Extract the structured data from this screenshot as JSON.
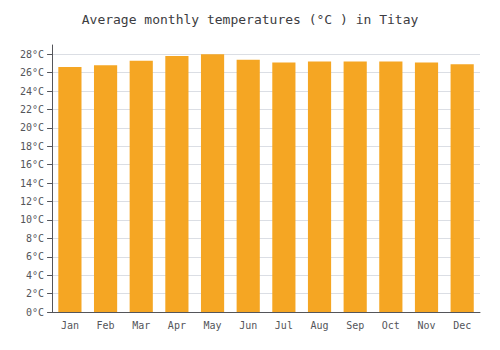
{
  "chart_data": {
    "type": "bar",
    "title": "Average monthly temperatures (°C ) in Titay",
    "categories": [
      "Jan",
      "Feb",
      "Mar",
      "Apr",
      "May",
      "Jun",
      "Jul",
      "Aug",
      "Sep",
      "Oct",
      "Nov",
      "Dec"
    ],
    "values": [
      26.6,
      26.8,
      27.3,
      27.8,
      28.0,
      27.4,
      27.1,
      27.2,
      27.2,
      27.2,
      27.1,
      26.9
    ],
    "color": "#F5A623",
    "ylim": [
      0,
      29
    ],
    "yticks": [
      {
        "value": 0,
        "label": "0°C"
      },
      {
        "value": 2,
        "label": "2°C"
      },
      {
        "value": 4,
        "label": "4°C"
      },
      {
        "value": 6,
        "label": "6°C"
      },
      {
        "value": 8,
        "label": "8°C"
      },
      {
        "value": 10,
        "label": "10°C"
      },
      {
        "value": 12,
        "label": "12°C"
      },
      {
        "value": 14,
        "label": "14°C"
      },
      {
        "value": 16,
        "label": "16°C"
      },
      {
        "value": 18,
        "label": "18°C"
      },
      {
        "value": 20,
        "label": "20°C"
      },
      {
        "value": 22,
        "label": "22°C"
      },
      {
        "value": 24,
        "label": "24°C"
      },
      {
        "value": 26,
        "label": "26°C"
      },
      {
        "value": 28,
        "label": "28°C"
      }
    ],
    "grid": true
  }
}
